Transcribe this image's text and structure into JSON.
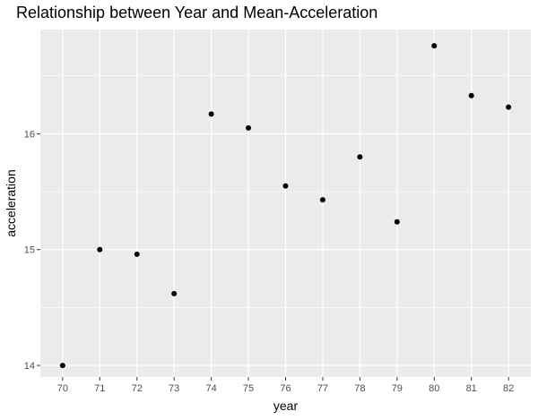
{
  "chart_data": {
    "type": "scatter",
    "title": "Relationship between Year and Mean-Acceleration",
    "xlabel": "year",
    "ylabel": "acceleration",
    "x": [
      70,
      71,
      72,
      73,
      74,
      75,
      76,
      77,
      78,
      79,
      80,
      81,
      82
    ],
    "y": [
      14.0,
      15.0,
      14.96,
      14.62,
      16.17,
      16.05,
      15.55,
      15.43,
      15.8,
      15.24,
      16.76,
      16.33,
      16.23
    ],
    "x_ticks": [
      "70",
      "71",
      "72",
      "73",
      "74",
      "75",
      "76",
      "77",
      "78",
      "79",
      "80",
      "81",
      "82"
    ],
    "y_ticks": [
      "14",
      "15",
      "16"
    ],
    "xlim": [
      69.4,
      82.6
    ],
    "ylim": [
      13.9,
      16.9
    ],
    "grid": true,
    "legend": "none",
    "colors": {
      "panel_background": "#ebebeb",
      "grid_major": "#ffffff",
      "point": "#000000",
      "tick_text": "#4d4d4d"
    }
  }
}
